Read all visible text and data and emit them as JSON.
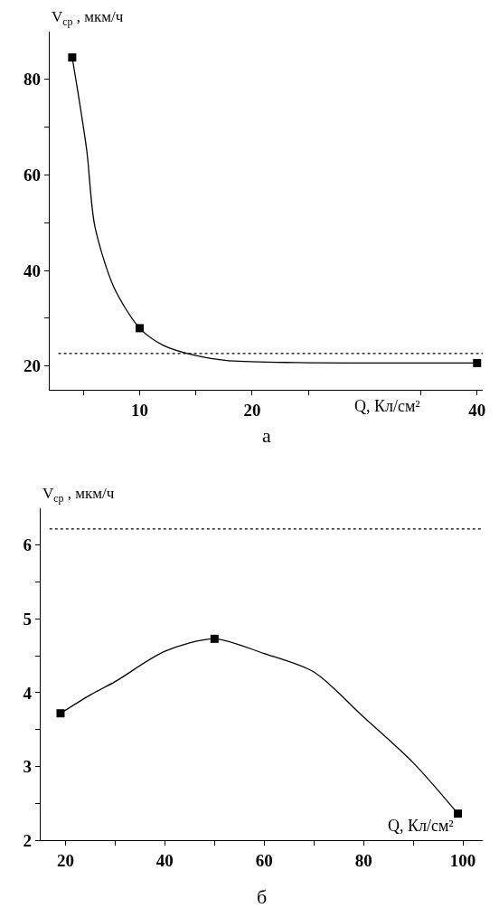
{
  "chart_data": [
    {
      "type": "scatter",
      "xlabel": "Q, Кл/см²",
      "ylabel": "V$_{ср}$ , мкм/ч",
      "annotations": [
        "а"
      ],
      "xlim": [
        2,
        40.5
      ],
      "xticks": [
        {
          "value": 5,
          "label": null
        },
        10,
        {
          "value": 15,
          "label": null
        },
        20,
        {
          "value": 25,
          "label": null
        },
        {
          "value": 35,
          "label": null
        },
        40
      ],
      "ylim": [
        15,
        90
      ],
      "yticks": [
        20,
        {
          "value": 30,
          "label": null
        },
        40,
        {
          "value": 50,
          "label": null
        },
        60,
        {
          "value": 70,
          "label": null
        },
        80
      ],
      "series": [
        {
          "type": "line",
          "color": "#000000",
          "marker": "none",
          "line_style": "solid",
          "x": [
            4,
            4.4,
            5.3,
            6,
            7.7,
            10,
            12.1,
            14.9,
            17.9,
            24,
            40
          ],
          "values": [
            84.6,
            78.9,
            65,
            49.4,
            36.5,
            27.9,
            24.3,
            22.2,
            21.1,
            20.7,
            20.6
          ]
        },
        {
          "color": "#000000",
          "marker": "square",
          "x": [
            4,
            10,
            40
          ],
          "values": [
            84.6,
            27.9,
            20.6
          ]
        }
      ],
      "ref_lines": [
        {
          "axis": "y",
          "value": 22.6,
          "color": "#000000",
          "line_style": "dotted"
        }
      ]
    },
    {
      "type": "scatter",
      "xlabel": "Q, Кл/см²",
      "ylabel": "V$_{ср}$ , мкм/ч",
      "annotations": [
        "б"
      ],
      "xlim": [
        15,
        104
      ],
      "xticks": [
        20,
        {
          "value": 30,
          "label": null
        },
        40,
        {
          "value": 50,
          "label": null
        },
        60,
        {
          "value": 70,
          "label": null
        },
        80,
        {
          "value": 90,
          "label": null
        },
        100
      ],
      "ylim": [
        2,
        6.5
      ],
      "yticks": [
        2,
        {
          "value": 2.5,
          "label": null
        },
        3,
        {
          "value": 3.5,
          "label": null
        },
        4,
        {
          "value": 4.5,
          "label": null
        },
        5,
        {
          "value": 5.5,
          "label": null
        },
        6
      ],
      "series": [
        {
          "type": "line",
          "color": "#000000",
          "marker": "none",
          "line_style": "solid",
          "x": [
            19,
            25,
            30,
            40,
            50,
            60,
            70,
            80,
            90,
            99
          ],
          "values": [
            3.72,
            3.97,
            4.15,
            4.56,
            4.73,
            4.53,
            4.28,
            3.67,
            3.05,
            2.36
          ]
        },
        {
          "color": "#000000",
          "marker": "square",
          "x": [
            19,
            50,
            99
          ],
          "values": [
            3.72,
            4.73,
            2.36
          ]
        }
      ],
      "ref_lines": [
        {
          "axis": "y",
          "value": 6.22,
          "color": "#000000",
          "line_style": "dotted"
        }
      ]
    }
  ]
}
